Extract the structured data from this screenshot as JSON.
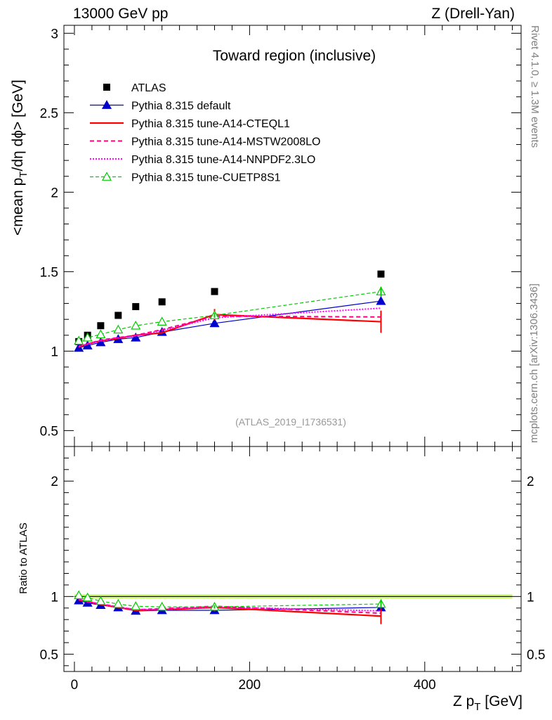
{
  "header": {
    "left": "13000 GeV pp",
    "right": "Z (Drell-Yan)"
  },
  "side_labels": {
    "rivet": "Rivet 4.1.0, ≥ 1.3M events",
    "mcplots": "mcplots.cern.ch [arXiv:1306.3436]"
  },
  "colors": {
    "atlas": "#000000",
    "default": "#0000cc",
    "cteql1": "#ff0000",
    "mstw": "#ff0080",
    "nnpdf": "#ff00ff",
    "cuetp8s1": "#00cc00",
    "band": "#ccff66",
    "analysis_label": "#999999",
    "side_label": "#808080"
  },
  "chart_data": [
    {
      "type": "line",
      "name": "main",
      "title": "Toward region (inclusive)",
      "analysis_label": "(ATLAS_2019_I1736531)",
      "ylabel_prefix": "<mean p",
      "ylabel_sub": "T",
      "ylabel_suffix": "/dη dϕ> [GeV]",
      "xlim": [
        -12,
        510
      ],
      "ylim": [
        0.4,
        3.05
      ],
      "ytick_labels": [
        "0.5",
        "1",
        "1.5",
        "2",
        "2.5",
        "3"
      ],
      "x": [
        5,
        15,
        30,
        50,
        70,
        100,
        160,
        350
      ],
      "series": [
        {
          "name": "ATLAS",
          "key": "atlas",
          "style": "square",
          "values": [
            1.06,
            1.1,
            1.16,
            1.225,
            1.28,
            1.31,
            1.375,
            1.485
          ]
        },
        {
          "name": "Pythia 8.315 default",
          "key": "default",
          "style": "line-triangle",
          "values": [
            1.02,
            1.035,
            1.055,
            1.075,
            1.085,
            1.12,
            1.175,
            1.315
          ]
        },
        {
          "name": "Pythia 8.315 tune-A14-CTEQL1",
          "key": "cteql1",
          "style": "thick",
          "values": [
            1.025,
            1.045,
            1.065,
            1.08,
            1.1,
            1.115,
            1.23,
            1.185
          ]
        },
        {
          "name": "Pythia 8.315 tune-A14-MSTW2008LO",
          "key": "mstw",
          "style": "dashed",
          "values": [
            1.03,
            1.045,
            1.07,
            1.085,
            1.1,
            1.135,
            1.22,
            1.215
          ]
        },
        {
          "name": "Pythia 8.315 tune-A14-NNPDF2.3LO",
          "key": "nnpdf",
          "style": "dotted",
          "values": [
            1.03,
            1.045,
            1.065,
            1.085,
            1.095,
            1.13,
            1.21,
            1.27
          ]
        },
        {
          "name": "Pythia 8.315 tune-CUETP8S1",
          "key": "cuetp8s1",
          "style": "dashed-open-triangle",
          "values": [
            1.065,
            1.085,
            1.105,
            1.135,
            1.16,
            1.185,
            1.225,
            1.375
          ]
        }
      ]
    },
    {
      "type": "line",
      "name": "ratio",
      "ylabel": "Ratio to ATLAS",
      "xlabel_prefix": "Z p",
      "xlabel_sub": "T",
      "xlabel_suffix": " [GeV]",
      "xlim": [
        -12,
        510
      ],
      "ylim": [
        0.35,
        2.3
      ],
      "ytick_labels": [
        "0.5",
        "1",
        "2"
      ],
      "xtick_labels": [
        "0",
        "200",
        "400"
      ],
      "x": [
        5,
        15,
        30,
        50,
        70,
        100,
        160,
        350
      ],
      "band": [
        0.98,
        1.02
      ],
      "series": [
        {
          "name": "Pythia 8.315 default",
          "key": "default",
          "values": [
            0.965,
            0.945,
            0.925,
            0.905,
            0.875,
            0.88,
            0.88,
            0.905
          ]
        },
        {
          "name": "Pythia 8.315 tune-A14-CTEQL1",
          "key": "cteql1",
          "values": [
            0.97,
            0.955,
            0.93,
            0.905,
            0.88,
            0.885,
            0.905,
            0.83
          ]
        },
        {
          "name": "Pythia 8.315 tune-A14-MSTW2008LO",
          "key": "mstw",
          "values": [
            0.975,
            0.955,
            0.935,
            0.91,
            0.885,
            0.895,
            0.915,
            0.855
          ]
        },
        {
          "name": "Pythia 8.315 tune-A14-NNPDF2.3LO",
          "key": "nnpdf",
          "values": [
            0.975,
            0.955,
            0.935,
            0.91,
            0.885,
            0.89,
            0.91,
            0.875
          ]
        },
        {
          "name": "Pythia 8.315 tune-CUETP8S1",
          "key": "cuetp8s1",
          "values": [
            1.01,
            0.99,
            0.96,
            0.935,
            0.915,
            0.91,
            0.91,
            0.935
          ]
        }
      ]
    }
  ]
}
